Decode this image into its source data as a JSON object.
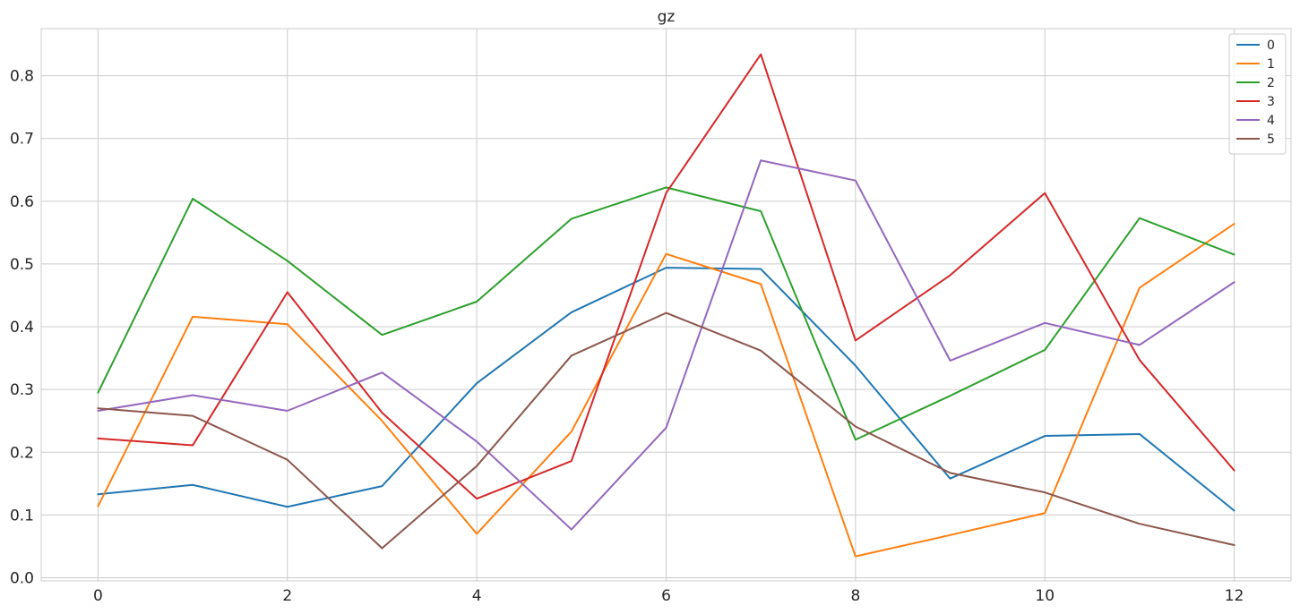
{
  "chart_data": {
    "type": "line",
    "title": "gz",
    "xlabel": "",
    "ylabel": "",
    "x": [
      0,
      1,
      2,
      3,
      4,
      5,
      6,
      7,
      8,
      9,
      10,
      11,
      12
    ],
    "xlim": [
      -0.6,
      12.6
    ],
    "ylim": [
      -0.005,
      0.875
    ],
    "xticks": [
      0,
      2,
      4,
      6,
      8,
      10,
      12
    ],
    "yticks": [
      0.0,
      0.1,
      0.2,
      0.3,
      0.4,
      0.5,
      0.6,
      0.7,
      0.8
    ],
    "ytick_labels": [
      "0.0",
      "0.1",
      "0.2",
      "0.3",
      "0.4",
      "0.5",
      "0.6",
      "0.7",
      "0.8"
    ],
    "xtick_labels": [
      "0",
      "2",
      "4",
      "6",
      "8",
      "10",
      "12"
    ],
    "grid": true,
    "legend_position": "top-right",
    "series": [
      {
        "name": "0",
        "color": "#1f77b4",
        "values": [
          0.133,
          0.148,
          0.113,
          0.146,
          0.31,
          0.423,
          0.494,
          0.492,
          0.338,
          0.158,
          0.226,
          0.229,
          0.107
        ]
      },
      {
        "name": "1",
        "color": "#ff7f0e",
        "values": [
          0.114,
          0.416,
          0.404,
          0.25,
          0.07,
          0.233,
          0.516,
          0.468,
          0.034,
          0.068,
          0.103,
          0.462,
          0.564
        ]
      },
      {
        "name": "2",
        "color": "#2ca02c",
        "values": [
          0.295,
          0.604,
          0.505,
          0.387,
          0.44,
          0.572,
          0.622,
          0.584,
          0.22,
          0.29,
          0.363,
          0.573,
          0.515
        ]
      },
      {
        "name": "3",
        "color": "#d62728",
        "values": [
          0.222,
          0.211,
          0.455,
          0.263,
          0.126,
          0.186,
          0.613,
          0.834,
          0.378,
          0.482,
          0.613,
          0.347,
          0.171
        ]
      },
      {
        "name": "4",
        "color": "#9467bd",
        "values": [
          0.266,
          0.291,
          0.266,
          0.327,
          0.217,
          0.077,
          0.239,
          0.665,
          0.633,
          0.346,
          0.406,
          0.371,
          0.471
        ]
      },
      {
        "name": "5",
        "color": "#8c564b",
        "values": [
          0.27,
          0.258,
          0.188,
          0.047,
          0.178,
          0.354,
          0.422,
          0.362,
          0.241,
          0.167,
          0.136,
          0.086,
          0.052
        ]
      }
    ]
  }
}
